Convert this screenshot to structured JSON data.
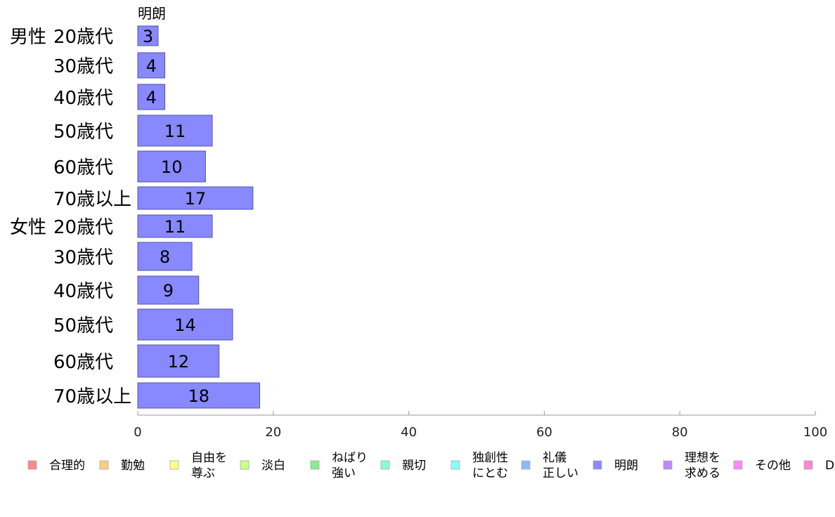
{
  "chart_data": {
    "type": "bar",
    "orientation": "horizontal",
    "series_label_top": "明朗",
    "groups": [
      {
        "name": "男性",
        "categories": [
          "20歳代",
          "30歳代",
          "40歳代",
          "50歳代",
          "60歳代",
          "70歳以上"
        ],
        "values": [
          3,
          4,
          4,
          11,
          10,
          17
        ]
      },
      {
        "name": "女性",
        "categories": [
          "20歳代",
          "30歳代",
          "40歳代",
          "50歳代",
          "60歳代",
          "70歳以上"
        ],
        "values": [
          11,
          8,
          9,
          14,
          12,
          18
        ]
      }
    ],
    "xlim": [
      0,
      100
    ],
    "xticks": [
      0,
      20,
      40,
      60,
      80,
      100
    ],
    "bar_color": "#8888ff",
    "bar_border": "#5555aa",
    "legend": [
      {
        "lines": [
          "合理的"
        ],
        "color": "#ff8888"
      },
      {
        "lines": [
          "勤勉"
        ],
        "color": "#ffcc88"
      },
      {
        "lines": [
          "自由を",
          "尊ぶ"
        ],
        "color": "#ffff88"
      },
      {
        "lines": [
          "淡白"
        ],
        "color": "#ccff88"
      },
      {
        "lines": [
          "ねばり",
          "強い"
        ],
        "color": "#88ee88"
      },
      {
        "lines": [
          "親切"
        ],
        "color": "#88ffcc"
      },
      {
        "lines": [
          "独創性",
          "にとむ"
        ],
        "color": "#88ffff"
      },
      {
        "lines": [
          "礼儀",
          "正しい"
        ],
        "color": "#88bbff"
      },
      {
        "lines": [
          "明朗"
        ],
        "color": "#8888ff"
      },
      {
        "lines": [
          "理想を",
          "求める"
        ],
        "color": "#bb88ff"
      },
      {
        "lines": [
          "その他"
        ],
        "color": "#ff88ff"
      },
      {
        "lines": [
          "D"
        ],
        "color": "#ff88cc"
      }
    ],
    "legend_position": "bottom"
  }
}
